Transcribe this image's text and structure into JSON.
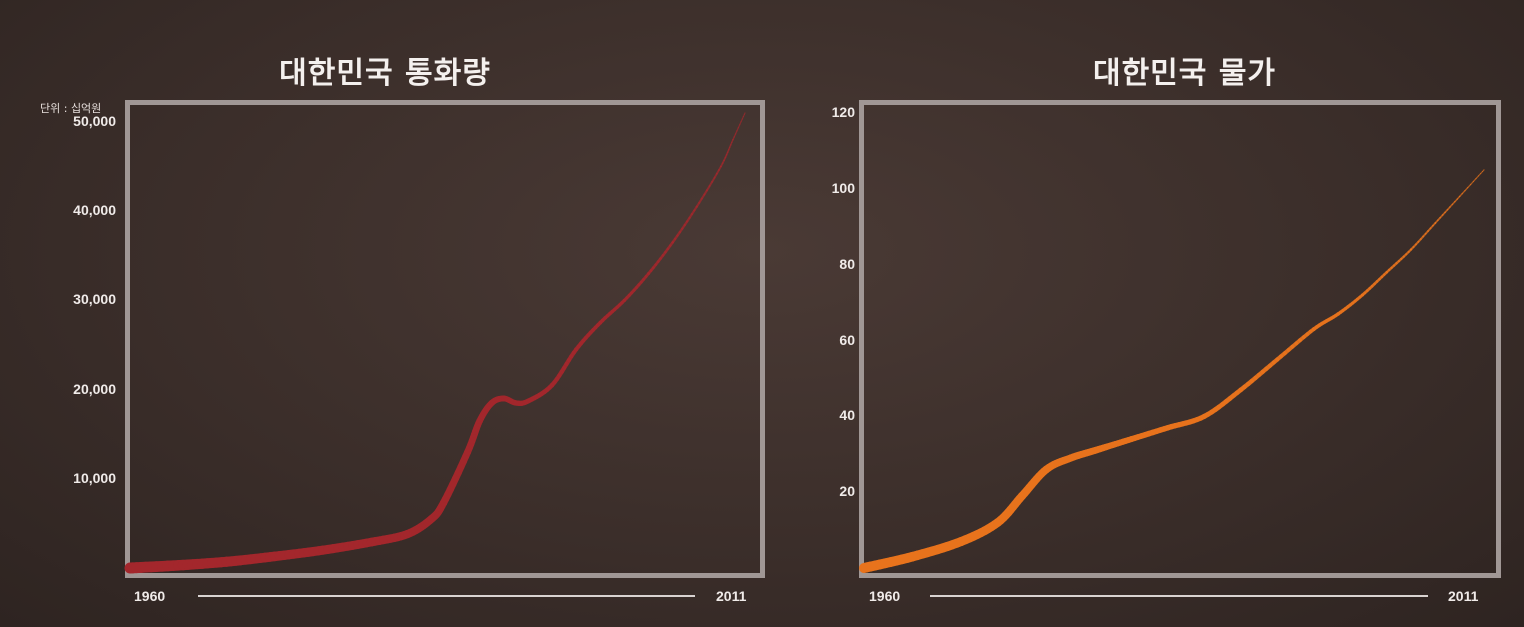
{
  "chart_data": [
    {
      "type": "line",
      "title": "대한민국 통화량",
      "unit_label": "단위 : 십억원",
      "color": "#a3272c",
      "ylim": [
        0,
        51000
      ],
      "yticks": [
        "10,000",
        "20,000",
        "30,000",
        "40,000",
        "50,000"
      ],
      "ytick_values": [
        10000,
        20000,
        30000,
        40000,
        50000
      ],
      "x_start_label": "1960",
      "x_end_label": "2011",
      "x": [
        1960,
        1964,
        1968,
        1972,
        1976,
        1980,
        1983,
        1985,
        1986,
        1988,
        1989,
        1990,
        1991,
        1992,
        1993,
        1995,
        1997,
        1999,
        2001,
        2003,
        2005,
        2007,
        2009,
        2010,
        2011
      ],
      "values": [
        0,
        300,
        700,
        1300,
        2000,
        2900,
        3800,
        5500,
        7300,
        13000,
        16500,
        18500,
        19000,
        18500,
        18700,
        20500,
        24500,
        27500,
        30000,
        33000,
        36500,
        40500,
        45000,
        48000,
        51000
      ]
    },
    {
      "type": "line",
      "title": "대한민국 물가",
      "color": "#e8731c",
      "ylim": [
        0,
        120
      ],
      "yticks": [
        "20",
        "40",
        "60",
        "80",
        "100",
        "120"
      ],
      "ytick_values": [
        20,
        40,
        60,
        80,
        100,
        120
      ],
      "x_start_label": "1960",
      "x_end_label": "2011",
      "x": [
        1960,
        1964,
        1968,
        1971,
        1973,
        1975,
        1977,
        1979,
        1980,
        1982,
        1985,
        1988,
        1991,
        1994,
        1997,
        1999,
        2001,
        2003,
        2005,
        2007,
        2009,
        2011
      ],
      "values": [
        0,
        3,
        7,
        12,
        19,
        26,
        29,
        31,
        32,
        34,
        37,
        40,
        47,
        55,
        63,
        67,
        72,
        78,
        84,
        91,
        98,
        105
      ]
    }
  ]
}
